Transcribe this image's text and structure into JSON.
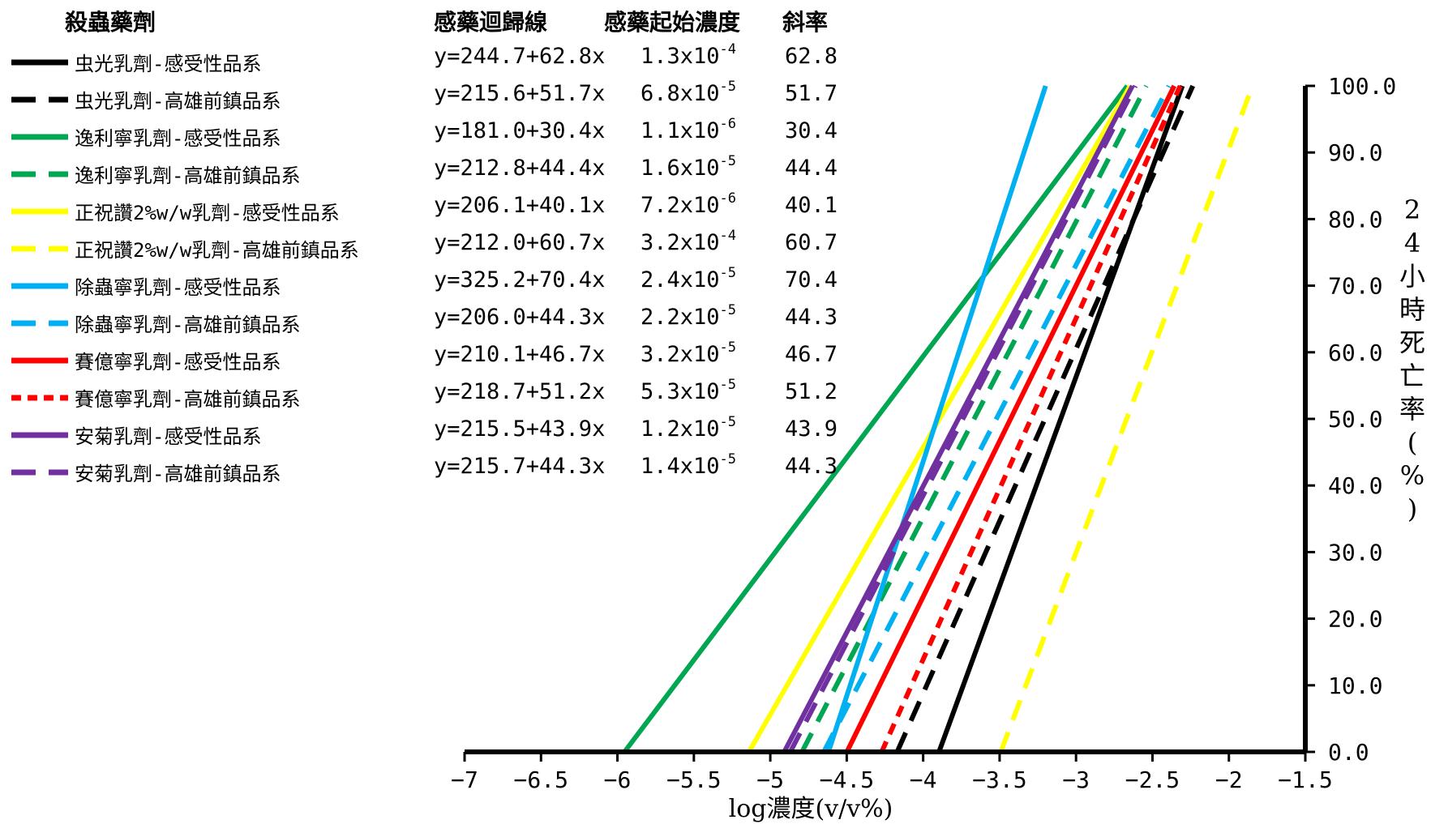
{
  "chart_data": {
    "type": "line",
    "legend_title": "殺蟲藥劑",
    "column_headers": {
      "regression": "感藥迴歸線",
      "threshold": "感藥起始濃度",
      "slope": "斜率"
    },
    "xlabel": "log濃度(v/v%)",
    "ylabel": "24小時死亡率(%)",
    "xlim": [
      -7,
      -1.5
    ],
    "ylim": [
      0,
      100
    ],
    "x_ticks": [
      "−7",
      "−6.5",
      "−6",
      "−5.5",
      "−5",
      "−4.5",
      "−4",
      "−3.5",
      "−3",
      "−2.5",
      "−2",
      "−1.5"
    ],
    "y_ticks": [
      "0.0",
      "10.0",
      "20.0",
      "30.0",
      "40.0",
      "50.0",
      "60.0",
      "70.0",
      "80.0",
      "90.0",
      "100.0"
    ],
    "series": [
      {
        "name": "虫光乳劑-感受性品系",
        "color": "#000000",
        "dash": "solid",
        "equation": "y=244.7+62.8x",
        "threshold_mantissa": "1.3x10",
        "threshold_exp": "-4",
        "slope_label": "62.8",
        "intercept": 244.7,
        "slope": 62.8
      },
      {
        "name": "虫光乳劑-高雄前鎮品系",
        "color": "#000000",
        "dash": "dashed",
        "equation": "y=215.6+51.7x",
        "threshold_mantissa": "6.8x10",
        "threshold_exp": "-5",
        "slope_label": "51.7",
        "intercept": 215.6,
        "slope": 51.7
      },
      {
        "name": "逸利寧乳劑-感受性品系",
        "color": "#00a651",
        "dash": "solid",
        "equation": "y=181.0+30.4x",
        "threshold_mantissa": "1.1x10",
        "threshold_exp": "-6",
        "slope_label": "30.4",
        "intercept": 181.0,
        "slope": 30.4
      },
      {
        "name": "逸利寧乳劑-高雄前鎮品系",
        "color": "#00a651",
        "dash": "dashed",
        "equation": "y=212.8+44.4x",
        "threshold_mantissa": "1.6x10",
        "threshold_exp": "-5",
        "slope_label": "44.4",
        "intercept": 212.8,
        "slope": 44.4
      },
      {
        "name": "正祝讚2%w/w乳劑-感受性品系",
        "color": "#ffff00",
        "dash": "solid",
        "equation": "y=206.1+40.1x",
        "threshold_mantissa": "7.2x10",
        "threshold_exp": "-6",
        "slope_label": "40.1",
        "intercept": 206.1,
        "slope": 40.1
      },
      {
        "name": "正祝讚2%w/w乳劑-高雄前鎮品系",
        "color": "#ffff00",
        "dash": "dashed",
        "equation": "y=212.0+60.7x",
        "threshold_mantissa": "3.2x10",
        "threshold_exp": "-4",
        "slope_label": "60.7",
        "intercept": 212.0,
        "slope": 60.7
      },
      {
        "name": "除蟲寧乳劑-感受性品系",
        "color": "#00b0f0",
        "dash": "solid",
        "equation": "y=325.2+70.4x",
        "threshold_mantissa": "2.4x10",
        "threshold_exp": "-5",
        "slope_label": "70.4",
        "intercept": 325.2,
        "slope": 70.4
      },
      {
        "name": "除蟲寧乳劑-高雄前鎮品系",
        "color": "#00b0f0",
        "dash": "dashed",
        "equation": "y=206.0+44.3x",
        "threshold_mantissa": "2.2x10",
        "threshold_exp": "-5",
        "slope_label": "44.3",
        "intercept": 206.0,
        "slope": 44.3
      },
      {
        "name": "賽億寧乳劑-感受性品系",
        "color": "#ff0000",
        "dash": "solid",
        "equation": "y=210.1+46.7x",
        "threshold_mantissa": "3.2x10",
        "threshold_exp": "-5",
        "slope_label": "46.7",
        "intercept": 210.1,
        "slope": 46.7
      },
      {
        "name": "賽億寧乳劑-高雄前鎮品系",
        "color": "#ff0000",
        "dash": "dotted",
        "equation": "y=218.7+51.2x",
        "threshold_mantissa": "5.3x10",
        "threshold_exp": "-5",
        "slope_label": "51.2",
        "intercept": 218.7,
        "slope": 51.2
      },
      {
        "name": "安菊乳劑-感受性品系",
        "color": "#7030a0",
        "dash": "solid",
        "equation": "y=215.5+43.9x",
        "threshold_mantissa": "1.2x10",
        "threshold_exp": "-5",
        "slope_label": "43.9",
        "intercept": 215.5,
        "slope": 43.9
      },
      {
        "name": "安菊乳劑-高雄前鎮品系",
        "color": "#7030a0",
        "dash": "dashed",
        "equation": "y=215.7+44.3x",
        "threshold_mantissa": "1.4x10",
        "threshold_exp": "-5",
        "slope_label": "44.3",
        "intercept": 215.7,
        "slope": 44.3
      }
    ]
  }
}
